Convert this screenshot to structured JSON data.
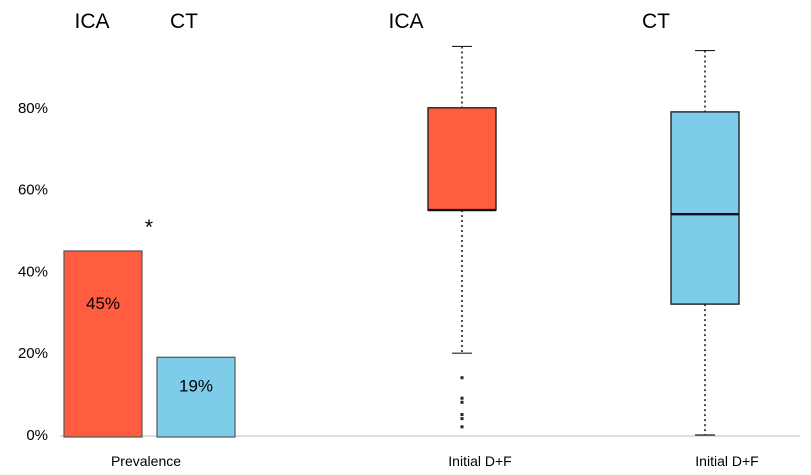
{
  "chart_data": {
    "type": "bar",
    "y_ticks": [
      "0%",
      "20%",
      "40%",
      "60%",
      "80%"
    ],
    "y_tick_values": [
      0,
      20,
      40,
      60,
      80
    ],
    "ylim": [
      0,
      100
    ],
    "group_headers": [
      "ICA",
      "CT",
      "ICA",
      "CT"
    ],
    "colors": {
      "ICA": "#ff5c40",
      "CT": "#7dcdea"
    },
    "prevalence": {
      "category": "Prevalence",
      "bars": [
        {
          "name": "ICA",
          "value": 45,
          "label": "45%"
        },
        {
          "name": "CT",
          "value": 19,
          "label": "19%"
        }
      ],
      "significance": "*"
    },
    "boxplots": [
      {
        "name": "ICA",
        "category": "Initial D+F",
        "whisker_low": 20,
        "q1": 55,
        "median": 55,
        "q3": 80,
        "whisker_high": 95,
        "outliers": [
          14,
          9,
          8,
          5,
          4,
          2
        ]
      },
      {
        "name": "CT",
        "category": "Initial D+F",
        "whisker_low": 0,
        "q1": 32,
        "median": 54,
        "q3": 79,
        "whisker_high": 94,
        "outliers": []
      }
    ]
  }
}
